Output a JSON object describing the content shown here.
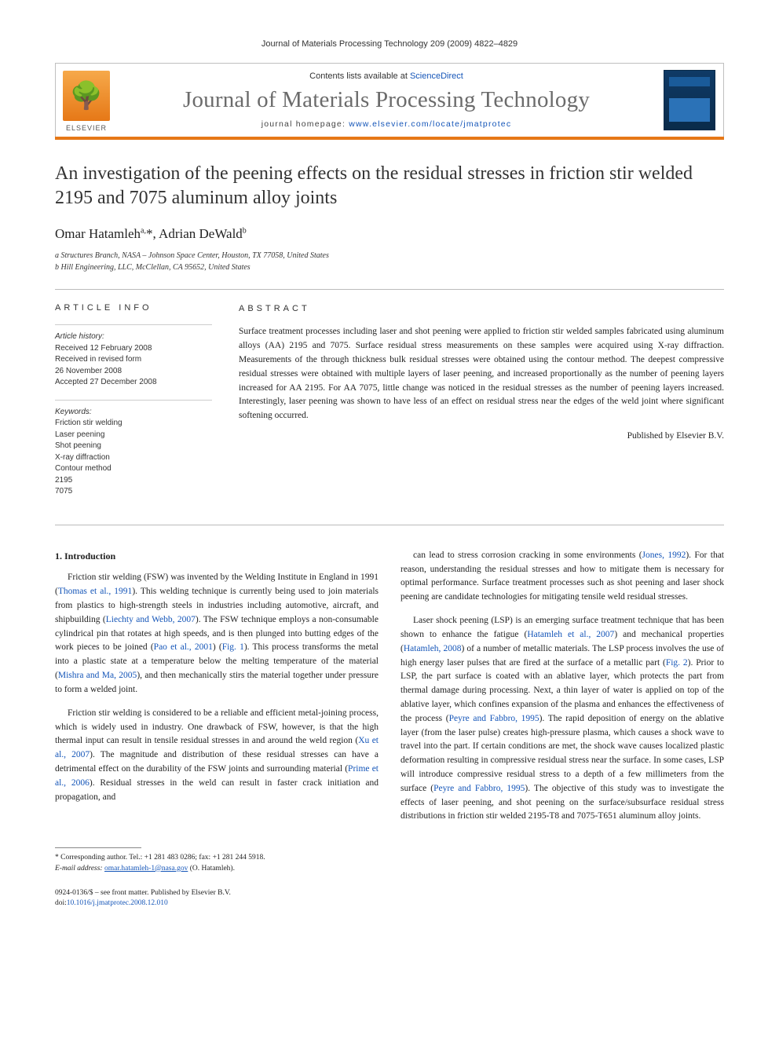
{
  "running_head": "Journal of Materials Processing Technology 209 (2009) 4822–4829",
  "masthead": {
    "contents_prefix": "Contents lists available at ",
    "contents_link": "ScienceDirect",
    "journal_name": "Journal of Materials Processing Technology",
    "homepage_prefix": "journal homepage: ",
    "homepage_url": "www.elsevier.com/locate/jmatprotec",
    "elsevier_label": "ELSEVIER"
  },
  "title": "An investigation of the peening effects on the residual stresses in friction stir welded 2195 and 7075 aluminum alloy joints",
  "authors_html": "Omar Hatamleh<sup>a,</sup>*, Adrian DeWald<sup>b</sup>",
  "affiliations": [
    "a Structures Branch, NASA – Johnson Space Center, Houston, TX 77058, United States",
    "b Hill Engineering, LLC, McClellan, CA 95652, United States"
  ],
  "article_info": {
    "heading": "ARTICLE INFO",
    "history_label": "Article history:",
    "history": [
      "Received 12 February 2008",
      "Received in revised form",
      "26 November 2008",
      "Accepted 27 December 2008"
    ],
    "keywords_label": "Keywords:",
    "keywords": [
      "Friction stir welding",
      "Laser peening",
      "Shot peening",
      "X-ray diffraction",
      "Contour method",
      "2195",
      "7075"
    ]
  },
  "abstract": {
    "heading": "ABSTRACT",
    "text": "Surface treatment processes including laser and shot peening were applied to friction stir welded samples fabricated using aluminum alloys (AA) 2195 and 7075. Surface residual stress measurements on these samples were acquired using X-ray diffraction. Measurements of the through thickness bulk residual stresses were obtained using the contour method. The deepest compressive residual stresses were obtained with multiple layers of laser peening, and increased proportionally as the number of peening layers increased for AA 2195. For AA 7075, little change was noticed in the residual stresses as the number of peening layers increased. Interestingly, laser peening was shown to have less of an effect on residual stress near the edges of the weld joint where significant softening occurred.",
    "publisher": "Published by Elsevier B.V."
  },
  "section1": {
    "heading": "1.  Introduction",
    "p1_a": "Friction stir welding (FSW) was invented by the Welding Institute in England in 1991 (",
    "p1_ref1": "Thomas et al., 1991",
    "p1_b": "). This welding technique is currently being used to join materials from plastics to high-strength steels in industries including automotive, aircraft, and shipbuilding (",
    "p1_ref2": "Liechty and Webb, 2007",
    "p1_c": "). The FSW technique employs a non-consumable cylindrical pin that rotates at high speeds, and is then plunged into butting edges of the work pieces to be joined (",
    "p1_ref3": "Pao et al., 2001",
    "p1_d": ") (",
    "p1_ref4": "Fig. 1",
    "p1_e": "). This process transforms the metal into a plastic state at a temperature below the melting temperature of the material (",
    "p1_ref5": "Mishra and Ma, 2005",
    "p1_f": "), and then mechanically stirs the material together under pressure to form a welded joint.",
    "p2_a": "Friction stir welding is considered to be a reliable and efficient metal-joining process, which is widely used in industry. One drawback of FSW, however, is that the high thermal input can result in tensile residual stresses in and around the weld region (",
    "p2_ref1": "Xu et al., 2007",
    "p2_b": "). The magnitude and distribution of these residual stresses can have a detrimental effect on the durability of the FSW joints and surrounding material (",
    "p2_ref2": "Prime et al., 2006",
    "p2_c": "). Residual stresses in the weld can result in faster crack initiation and propagation, and",
    "p3_a": "can lead to stress corrosion cracking in some environments (",
    "p3_ref1": "Jones, 1992",
    "p3_b": "). For that reason, understanding the residual stresses and how to mitigate them is necessary for optimal performance. Surface treatment processes such as shot peening and laser shock peening are candidate technologies for mitigating tensile weld residual stresses.",
    "p4_a": "Laser shock peening (LSP) is an emerging surface treatment technique that has been shown to enhance the fatigue (",
    "p4_ref1": "Hatamleh et al., 2007",
    "p4_b": ") and mechanical properties (",
    "p4_ref2": "Hatamleh, 2008",
    "p4_c": ") of a number of metallic materials. The LSP process involves the use of high energy laser pulses that are fired at the surface of a metallic part (",
    "p4_ref3": "Fig. 2",
    "p4_d": "). Prior to LSP, the part surface is coated with an ablative layer, which protects the part from thermal damage during processing. Next, a thin layer of water is applied on top of the ablative layer, which confines expansion of the plasma and enhances the effectiveness of the process (",
    "p4_ref4": "Peyre and Fabbro, 1995",
    "p4_e": "). The rapid deposition of energy on the ablative layer (from the laser pulse) creates high-pressure plasma, which causes a shock wave to travel into the part. If certain conditions are met, the shock wave causes localized plastic deformation resulting in compressive residual stress near the surface. In some cases, LSP will introduce compressive residual stress to a depth of a few millimeters from the surface (",
    "p4_ref5": "Peyre and Fabbro, 1995",
    "p4_f": "). The objective of this study was to investigate the effects of laser peening, and shot peening on the surface/subsurface residual stress distributions in friction stir welded 2195-T8 and 7075-T651 aluminum alloy joints."
  },
  "footnote": {
    "corr": "* Corresponding author. Tel.: +1 281 483 0286; fax: +1 281 244 5918.",
    "email_label": "E-mail address: ",
    "email": "omar.hatamleh-1@nasa.gov",
    "email_who": " (O. Hatamleh)."
  },
  "footer": {
    "issn": "0924-0136/$ – see front matter. Published by Elsevier B.V.",
    "doi_label": "doi:",
    "doi": "10.1016/j.jmatprotec.2008.12.010"
  },
  "colors": {
    "accent": "#e67817",
    "link": "#1455b8",
    "rule": "#bbbbbb",
    "text": "#222222"
  },
  "typography": {
    "body_pt": 11.5,
    "title_pt": 24,
    "journal_name_pt": 29,
    "small_pt": 10
  }
}
